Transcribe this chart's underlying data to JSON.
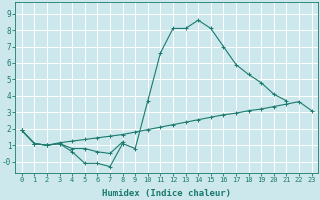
{
  "xlabel": "Humidex (Indice chaleur)",
  "line_color": "#1a7a6e",
  "background_color": "#cce8ec",
  "grid_color": "#ffffff",
  "ylim": [
    -0.7,
    9.7
  ],
  "xlim": [
    -0.5,
    23.5
  ],
  "yticks": [
    0,
    1,
    2,
    3,
    4,
    5,
    6,
    7,
    8,
    9
  ],
  "ytick_labels": [
    "-0",
    "1",
    "2",
    "3",
    "4",
    "5",
    "6",
    "7",
    "8",
    "9"
  ],
  "xticks": [
    0,
    1,
    2,
    3,
    4,
    5,
    6,
    7,
    8,
    9,
    10,
    11,
    12,
    13,
    14,
    15,
    16,
    17,
    18,
    19,
    20,
    21,
    22,
    23
  ],
  "curve1_x": [
    0,
    1,
    2,
    3,
    4,
    5,
    6,
    7,
    8,
    9,
    10,
    11,
    12,
    13,
    14,
    15,
    16,
    17,
    18,
    19,
    20,
    21
  ],
  "curve1_y": [
    1.9,
    1.1,
    1.0,
    1.1,
    0.6,
    -0.1,
    -0.1,
    -0.3,
    1.1,
    0.8,
    3.7,
    6.6,
    8.1,
    8.1,
    8.6,
    8.1,
    7.0,
    5.9,
    5.3,
    4.8,
    4.1,
    3.7
  ],
  "curve2_x": [
    0,
    1,
    2,
    3,
    4,
    5,
    6,
    7,
    8
  ],
  "curve2_y": [
    1.9,
    1.1,
    1.0,
    1.1,
    0.8,
    0.8,
    0.6,
    0.5,
    1.2
  ],
  "curve3_x": [
    0,
    1,
    2,
    3,
    4,
    5,
    6,
    7,
    8,
    9,
    10,
    11,
    12,
    13,
    14,
    15,
    16,
    17,
    18,
    19,
    20,
    21,
    22,
    23
  ],
  "curve3_y": [
    1.9,
    1.1,
    1.0,
    1.15,
    1.25,
    1.35,
    1.45,
    1.55,
    1.65,
    1.8,
    1.95,
    2.1,
    2.25,
    2.4,
    2.55,
    2.7,
    2.85,
    2.95,
    3.1,
    3.2,
    3.35,
    3.5,
    3.65,
    3.1
  ],
  "xlabel_fontsize": 6.5,
  "tick_fontsize_x": 5.0,
  "tick_fontsize_y": 5.5
}
